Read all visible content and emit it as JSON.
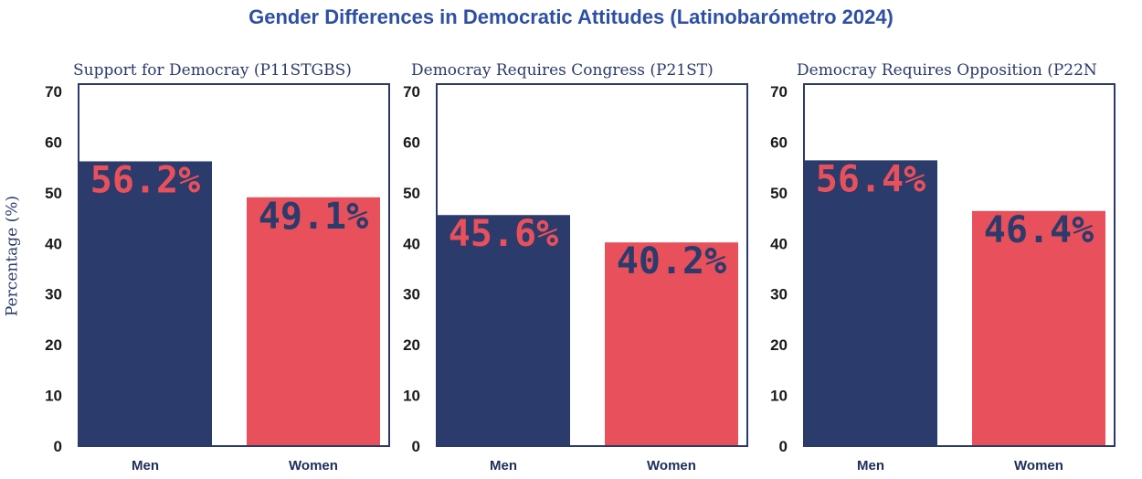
{
  "page": {
    "title": "Gender Differences in Democratic Attitudes (Latinobarómetro 2024)",
    "ylabel": "Percentage (%)"
  },
  "colors": {
    "title": "#2e4fa3",
    "men_bar": "#2b3b6b",
    "women_bar": "#e8505b",
    "axis": "#2b3a6b",
    "men_label_text": "#e8505b",
    "women_label_text": "#2b3b6b"
  },
  "chart_data": [
    {
      "type": "bar",
      "title": "Support for Democray (P11STGBS)",
      "categories": [
        "Men",
        "Women"
      ],
      "values": [
        56.2,
        49.1
      ],
      "value_labels": [
        "56.2%",
        "49.1%"
      ],
      "ylabel": "Percentage (%)",
      "ylim": [
        0,
        70
      ],
      "yticks": [
        0,
        10,
        20,
        30,
        40,
        50,
        60,
        70
      ],
      "grid": false
    },
    {
      "type": "bar",
      "title": "Democray Requires Congress (P21ST)",
      "categories": [
        "Men",
        "Women"
      ],
      "values": [
        45.6,
        40.2
      ],
      "value_labels": [
        "45.6%",
        "40.2%"
      ],
      "ylim": [
        0,
        70
      ],
      "yticks": [
        0,
        10,
        20,
        30,
        40,
        50,
        60,
        70
      ],
      "grid": false
    },
    {
      "type": "bar",
      "title": "Democray Requires Opposition (P22N",
      "categories": [
        "Men",
        "Women"
      ],
      "values": [
        56.4,
        46.4
      ],
      "value_labels": [
        "56.4%",
        "46.4%"
      ],
      "ylim": [
        0,
        70
      ],
      "yticks": [
        0,
        10,
        20,
        30,
        40,
        50,
        60,
        70
      ],
      "grid": false
    }
  ]
}
